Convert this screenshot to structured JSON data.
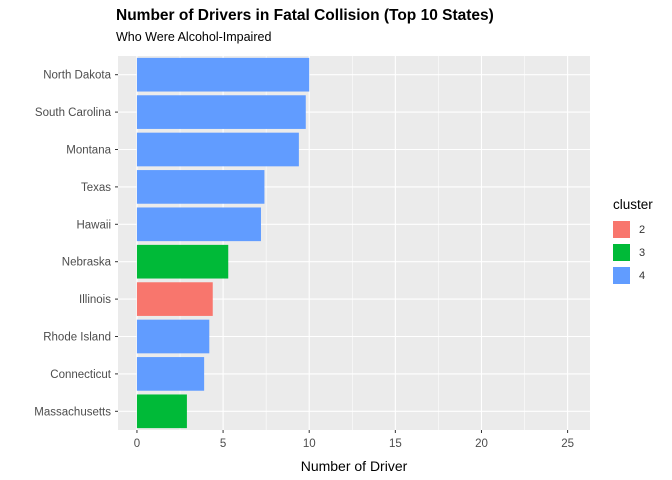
{
  "chart_data": {
    "type": "bar",
    "orientation": "horizontal",
    "title": "Number of Drivers in Fatal Collision (Top 10 States)",
    "subtitle": "Who Were Alcohol-Impaired",
    "xlabel": "Number of Driver",
    "ylabel": "",
    "xlim": [
      -1.1,
      26.3
    ],
    "x_ticks": [
      0,
      5,
      10,
      15,
      20,
      25
    ],
    "grid": true,
    "legend_title": "cluster",
    "legend_position": "right",
    "categories": [
      "North Dakota",
      "South Carolina",
      "Montana",
      "Texas",
      "Hawaii",
      "Nebraska",
      "Illinois",
      "Rhode Island",
      "Connecticut",
      "Massachusetts"
    ],
    "values": [
      10.0,
      9.8,
      9.4,
      7.4,
      7.2,
      5.3,
      4.4,
      4.2,
      3.9,
      2.9
    ],
    "cluster": [
      "4",
      "4",
      "4",
      "4",
      "4",
      "3",
      "2",
      "4",
      "4",
      "3"
    ],
    "legend": [
      {
        "label": "2",
        "color": "#F8766D"
      },
      {
        "label": "3",
        "color": "#00BA38"
      },
      {
        "label": "4",
        "color": "#619CFF"
      }
    ]
  },
  "colors": {
    "panel_background": "#EBEBEB",
    "grid_major": "#FFFFFF",
    "axis_text": "#4D4D4D"
  }
}
